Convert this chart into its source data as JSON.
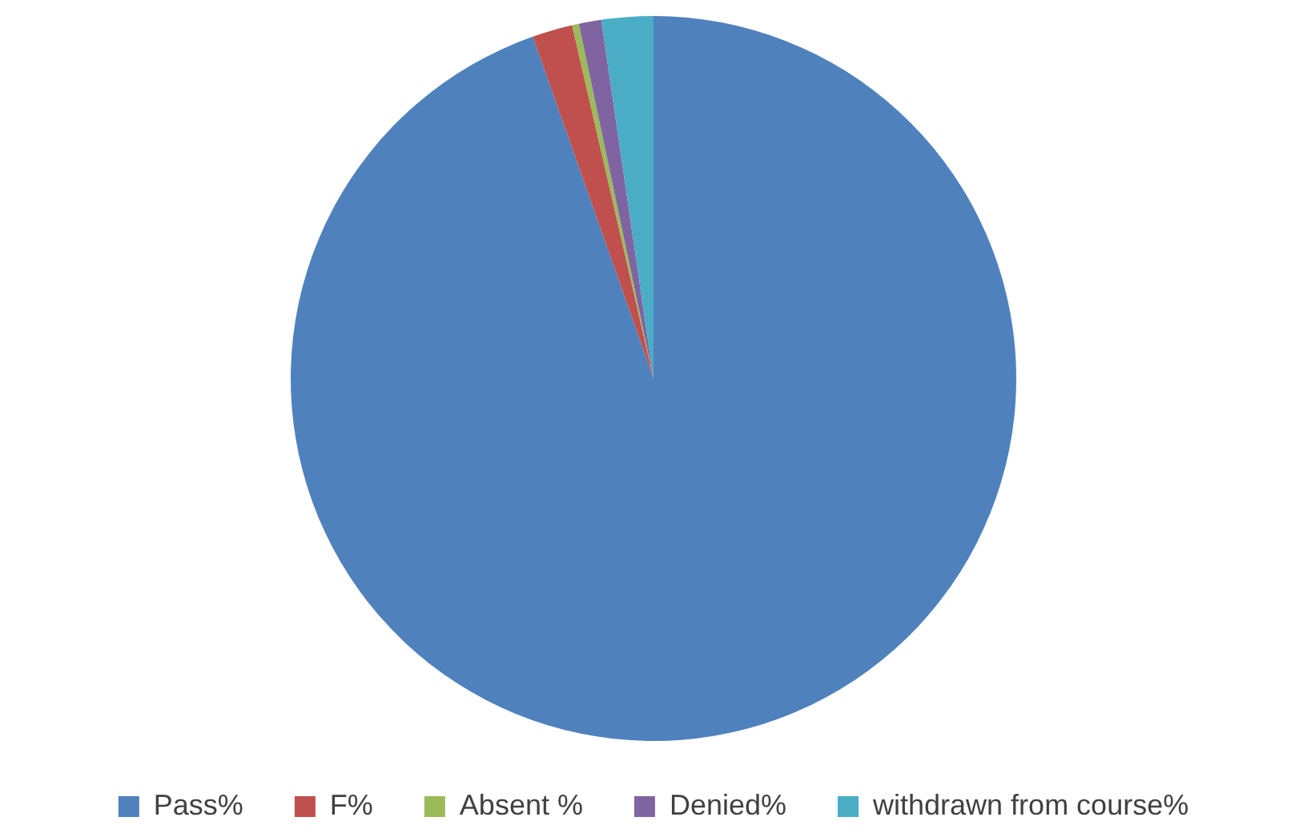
{
  "chart_data": {
    "type": "pie",
    "categories": [
      "Pass%",
      "F%",
      "Absent %",
      "Denied%",
      "withdrawn from course%"
    ],
    "values": [
      94.6,
      1.8,
      0.3,
      1.0,
      2.3
    ],
    "colors": [
      "#4f81bd",
      "#c0504d",
      "#9bbb59",
      "#8064a2",
      "#4bacc6"
    ],
    "legend": "bottom"
  }
}
